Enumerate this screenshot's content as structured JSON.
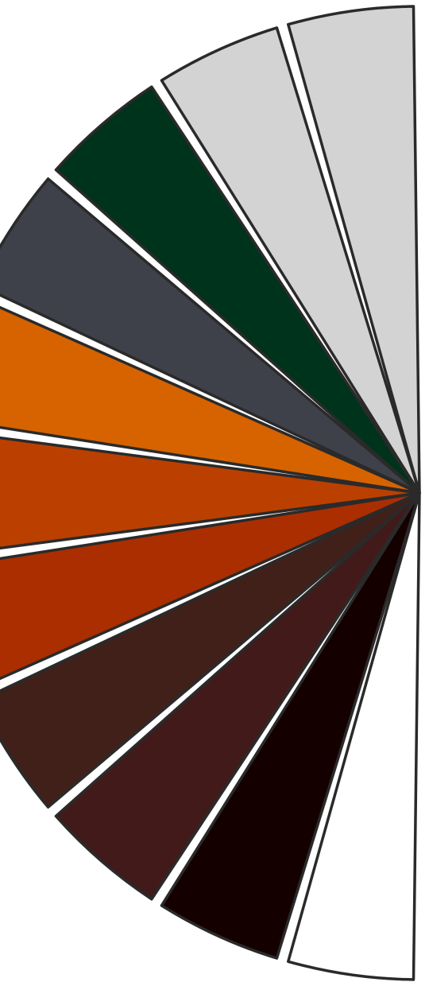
{
  "fan": {
    "swatches": [
      {
        "name": "swatch-light-grey-1",
        "color": "#d3d3d3"
      },
      {
        "name": "swatch-light-grey-2",
        "color": "#d3d3d3"
      },
      {
        "name": "swatch-dark-green",
        "color": "#00331c"
      },
      {
        "name": "swatch-slate-grey",
        "color": "#3f414a"
      },
      {
        "name": "swatch-orange",
        "color": "#d66300"
      },
      {
        "name": "swatch-rust-orange",
        "color": "#bb4000"
      },
      {
        "name": "swatch-red-orange",
        "color": "#ab2e00"
      },
      {
        "name": "swatch-dark-brown",
        "color": "#42201a"
      },
      {
        "name": "swatch-maroon",
        "color": "#421a1a"
      },
      {
        "name": "swatch-near-black",
        "color": "#150000"
      },
      {
        "name": "swatch-white",
        "color": "#ffffff"
      }
    ]
  }
}
